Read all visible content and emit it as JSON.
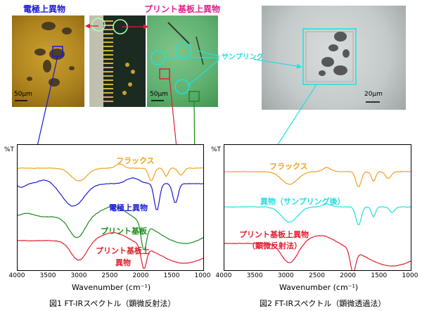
{
  "labels": {
    "electrode_foreign": "電極上異物",
    "pcb_foreign": "プリント基板上異物",
    "sampling": "サンプリング",
    "scale_left": "50μm",
    "scale_pcb": "50μm",
    "scale_right": "20μm"
  },
  "colors": {
    "orange": "#f0a020",
    "blue": "#1a1ad0",
    "green": "#1a8a1a",
    "red": "#e01e2e",
    "cyan": "#20e0e0",
    "magenta": "#e0208a"
  },
  "chart_data": [
    {
      "type": "line",
      "ylabel": "%T",
      "xlabel": "Wavenumber (cm⁻¹)",
      "xlim": [
        4000,
        1000
      ],
      "x_ticks": [
        "4000",
        "3500",
        "3000",
        "2500",
        "2000",
        "1500",
        "1000"
      ],
      "series": [
        {
          "name": "フラックス",
          "color": "#f0a020"
        },
        {
          "name": "電極上異物",
          "color": "#1a1ad0"
        },
        {
          "name": "プリント基板",
          "color": "#1a8a1a"
        },
        {
          "name": "プリント基板上異物",
          "color": "#e01e2e"
        }
      ],
      "caption": "図1 FT-IRスペクトル（顕微反射法）"
    },
    {
      "type": "line",
      "ylabel": "%T",
      "xlabel": "Wavenumber (cm⁻¹)",
      "xlim": [
        4000,
        1000
      ],
      "x_ticks": [
        "4000",
        "3500",
        "3000",
        "2500",
        "2000",
        "1500",
        "1000"
      ],
      "series": [
        {
          "name": "フラックス",
          "color": "#f0a020"
        },
        {
          "name": "異物（サンプリング後）",
          "color": "#20e0e0"
        },
        {
          "name": "プリント基板上異物（顕微反射法）",
          "color": "#e01e2e"
        }
      ],
      "caption": "図2 FT-IRスペクトル（顕微透過法）"
    }
  ],
  "chart1_labels": {
    "flux": "フラックス",
    "electrode": "電極上異物",
    "pcb": "プリント基板",
    "pcb_foreign_1": "プリント基板上",
    "pcb_foreign_2": "異物"
  },
  "chart2_labels": {
    "flux": "フラックス",
    "foreign_sampled": "異物（サンプリング後）",
    "pcb_foreign_1": "プリント基板上異物",
    "pcb_foreign_2": "（顕微反射法）"
  }
}
